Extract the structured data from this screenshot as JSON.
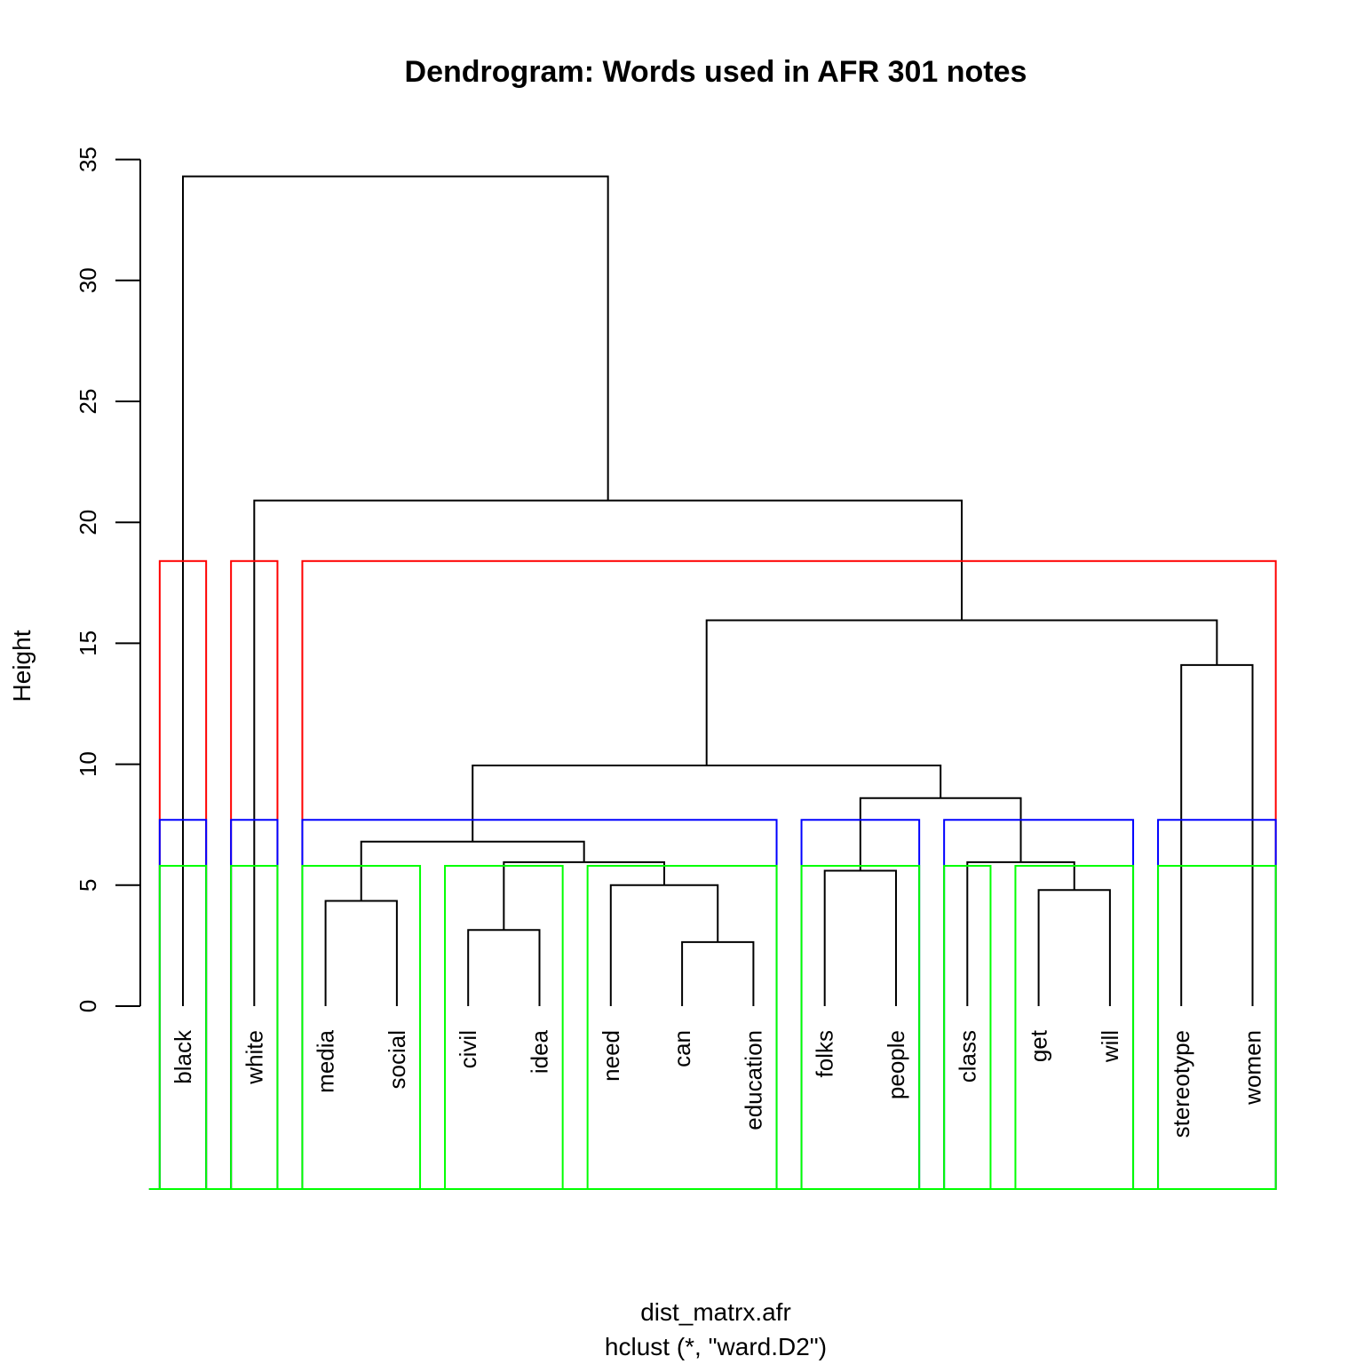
{
  "chart_data": {
    "type": "dendrogram",
    "title": "Dendrogram: Words used in AFR 301 notes",
    "xlabel": "dist_matrx.afr",
    "sublabel": "hclust (*, \"ward.D2\")",
    "ylabel": "Height",
    "ylim": [
      0,
      35
    ],
    "yticks": [
      0,
      5,
      10,
      15,
      20,
      25,
      30,
      35
    ],
    "leaves": [
      "black",
      "white",
      "media",
      "social",
      "civil",
      "idea",
      "need",
      "can",
      "education",
      "folks",
      "people",
      "class",
      "get",
      "will",
      "stereotype",
      "women"
    ],
    "merges": [
      {
        "left": "can",
        "right": "education",
        "height": 2.65
      },
      {
        "left": "civil",
        "right": "idea",
        "height": 3.15
      },
      {
        "left": "media",
        "right": "social",
        "height": 4.35
      },
      {
        "left": "get",
        "right": "will",
        "height": 4.8
      },
      {
        "left": "need",
        "right": "can+education",
        "height": 5.0
      },
      {
        "left": "folks",
        "right": "people",
        "height": 5.6
      },
      {
        "left": "civil+idea",
        "right": "need+can+education",
        "height": 5.95
      },
      {
        "left": "class",
        "right": "get+will",
        "height": 5.95
      },
      {
        "left": "media+social",
        "right": "civil+idea+need+can+education",
        "height": 6.8
      },
      {
        "left": "folks+people",
        "right": "class+get+will",
        "height": 8.6
      },
      {
        "left": "media...education",
        "right": "folks...will",
        "height": 9.95
      },
      {
        "left": "stereotype",
        "right": "women",
        "height": 14.1
      },
      {
        "left": "media...will",
        "right": "stereotype+women",
        "height": 15.95
      },
      {
        "left": "white",
        "right": "media...women",
        "height": 20.9
      },
      {
        "left": "black",
        "right": "white...women",
        "height": 34.3
      }
    ],
    "cluster_boxes": [
      {
        "color": "#ff0000",
        "cut_height": 18.4,
        "clusters": [
          [
            "black"
          ],
          [
            "white"
          ],
          [
            "media",
            "social",
            "civil",
            "idea",
            "need",
            "can",
            "education",
            "folks",
            "people",
            "class",
            "get",
            "will",
            "stereotype",
            "women"
          ]
        ]
      },
      {
        "color": "#0000ff",
        "cut_height": 7.7,
        "clusters": [
          [
            "black"
          ],
          [
            "white"
          ],
          [
            "media",
            "social",
            "civil",
            "idea",
            "need",
            "can",
            "education"
          ],
          [
            "folks",
            "people"
          ],
          [
            "class",
            "get",
            "will"
          ],
          [
            "stereotype",
            "women"
          ]
        ]
      },
      {
        "color": "#00ff00",
        "cut_height": 5.8,
        "clusters": [
          [
            "black"
          ],
          [
            "white"
          ],
          [
            "media",
            "social"
          ],
          [
            "civil",
            "idea"
          ],
          [
            "need",
            "can",
            "education"
          ],
          [
            "folks",
            "people"
          ],
          [
            "class"
          ],
          [
            "get",
            "will"
          ],
          [
            "stereotype",
            "women"
          ]
        ]
      }
    ]
  }
}
